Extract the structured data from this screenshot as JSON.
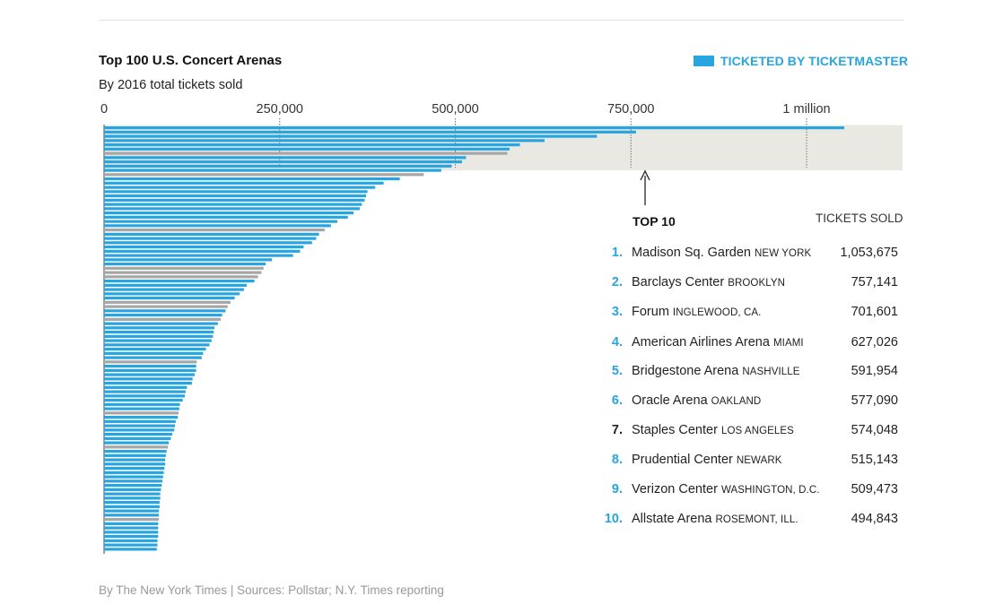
{
  "header": {
    "title": "Top 100 U.S. Concert Arenas",
    "subtitle": "By 2016 total tickets sold"
  },
  "legend": {
    "label": "TICKETED BY TICKETMASTER",
    "color": "#27a5e0"
  },
  "colors": {
    "ticketmaster": "#27a5e0",
    "other": "#a6a6a6",
    "highlight_band": "#e9e8e3",
    "rank_number": "#27a5e0",
    "rank_number_non_ticketmaster": "#222222"
  },
  "callout": {
    "label": "TOP 10",
    "arrow": "up-arrow-icon"
  },
  "table": {
    "column_header": "TICKETS SOLD",
    "rows": [
      {
        "rank": "1.",
        "name": "Madison Sq. Garden",
        "location": "NEW YORK",
        "tickets": "1,053,675",
        "ticketmaster": true
      },
      {
        "rank": "2.",
        "name": "Barclays Center",
        "location": "BROOKLYN",
        "tickets": "757,141",
        "ticketmaster": true
      },
      {
        "rank": "3.",
        "name": "Forum",
        "location": "INGLEWOOD, CA.",
        "tickets": "701,601",
        "ticketmaster": true
      },
      {
        "rank": "4.",
        "name": "American Airlines Arena",
        "location": "MIAMI",
        "tickets": "627,026",
        "ticketmaster": true
      },
      {
        "rank": "5.",
        "name": "Bridgestone Arena",
        "location": "NASHVILLE",
        "tickets": "591,954",
        "ticketmaster": true
      },
      {
        "rank": "6.",
        "name": "Oracle Arena",
        "location": "OAKLAND",
        "tickets": "577,090",
        "ticketmaster": true
      },
      {
        "rank": "7.",
        "name": "Staples Center",
        "location": "LOS ANGELES",
        "tickets": "574,048",
        "ticketmaster": false
      },
      {
        "rank": "8.",
        "name": "Prudential Center",
        "location": "NEWARK",
        "tickets": "515,143",
        "ticketmaster": true
      },
      {
        "rank": "9.",
        "name": "Verizon Center",
        "location": "WASHINGTON, D.C.",
        "tickets": "509,473",
        "ticketmaster": true
      },
      {
        "rank": "10.",
        "name": "Allstate Arena",
        "location": "ROSEMONT, ILL.",
        "tickets": "494,843",
        "ticketmaster": true
      }
    ]
  },
  "source": "By The New York Times | Sources: Pollstar; N.Y. Times reporting",
  "chart_data": {
    "type": "bar",
    "orientation": "horizontal",
    "title": "Top 100 U.S. Concert Arenas",
    "subtitle": "By 2016 total tickets sold",
    "xlabel": "",
    "ylabel": "",
    "xlim": [
      0,
      1130000
    ],
    "x_ticks": [
      {
        "value": 0,
        "label": "0"
      },
      {
        "value": 250000,
        "label": "250,000"
      },
      {
        "value": 500000,
        "label": "500,000"
      },
      {
        "value": 750000,
        "label": "750,000"
      },
      {
        "value": 1000000,
        "label": "1 million"
      }
    ],
    "grid": "dotted vertical lines at 250,000, 500,000, 750,000 and 1 million",
    "legend": "top-right",
    "highlight": "top 10 bars on shaded band",
    "series": [
      {
        "name": "TICKETED BY TICKETMASTER",
        "values": [
          1053675,
          757141,
          701601,
          627026,
          591954,
          577090,
          574048,
          515143,
          509473,
          494843,
          480000,
          455000,
          421000,
          398000,
          386000,
          375000,
          373000,
          371000,
          367000,
          364000,
          355000,
          347000,
          332000,
          323000,
          314000,
          306000,
          302000,
          296000,
          284000,
          279000,
          269000,
          239000,
          230000,
          227000,
          224000,
          219000,
          214000,
          203000,
          199000,
          193000,
          186000,
          180000,
          176000,
          173000,
          168000,
          166000,
          162000,
          157000,
          156000,
          155000,
          153000,
          150000,
          145000,
          141000,
          139000,
          132000,
          131000,
          131000,
          129000,
          126000,
          125000,
          118000,
          116000,
          115000,
          112000,
          108000,
          107000,
          106000,
          105000,
          102000,
          101000,
          100000,
          97000,
          95000,
          92000,
          91000,
          89000,
          88000,
          87000,
          87000,
          86000,
          85000,
          84000,
          83000,
          82000,
          81000,
          80000,
          80000,
          79000,
          79000,
          78000,
          78000,
          78000,
          77000,
          77000,
          77000,
          77000,
          76000,
          76000,
          75000
        ],
        "ticketed_by_ticketmaster": [
          true,
          true,
          true,
          true,
          true,
          true,
          false,
          true,
          true,
          true,
          true,
          false,
          true,
          true,
          true,
          true,
          true,
          true,
          true,
          true,
          true,
          true,
          true,
          true,
          false,
          true,
          true,
          true,
          true,
          true,
          true,
          true,
          true,
          false,
          false,
          false,
          true,
          true,
          true,
          true,
          true,
          false,
          false,
          true,
          true,
          false,
          true,
          true,
          true,
          true,
          true,
          true,
          true,
          true,
          true,
          false,
          true,
          true,
          true,
          true,
          true,
          true,
          true,
          true,
          true,
          true,
          true,
          false,
          true,
          true,
          true,
          true,
          true,
          true,
          true,
          false,
          true,
          true,
          true,
          true,
          true,
          true,
          true,
          true,
          true,
          true,
          true,
          true,
          true,
          true,
          true,
          true,
          false,
          true,
          true,
          true,
          true,
          true,
          true,
          true
        ]
      }
    ]
  }
}
